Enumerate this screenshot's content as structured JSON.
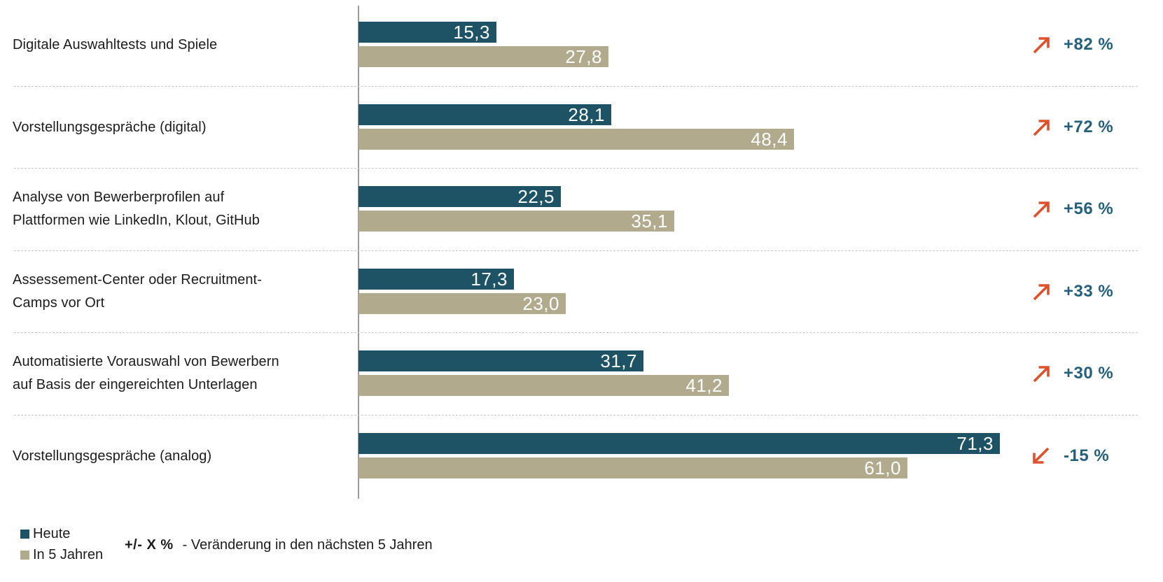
{
  "chart_data": {
    "type": "bar",
    "orientation": "horizontal",
    "value_format": "decimal-comma",
    "xlim": [
      0,
      75
    ],
    "grid": "off",
    "legend_position": "bottom-left",
    "series": [
      {
        "name": "Heute",
        "color": "#1d5365"
      },
      {
        "name": "In 5 Jahren",
        "color": "#b1aa8c"
      }
    ],
    "rows": [
      {
        "label": "Digitale Auswahltests und Spiele",
        "values": [
          15.3,
          27.8
        ],
        "value_labels": [
          "15,3",
          "27,8"
        ],
        "change": "+82 %",
        "direction": "up"
      },
      {
        "label": "Vorstellungsgespräche (digital)",
        "values": [
          28.1,
          48.4
        ],
        "value_labels": [
          "28,1",
          "48,4"
        ],
        "change": "+72 %",
        "direction": "up"
      },
      {
        "label": "Analyse von Bewerberprofilen auf\nPlattformen wie LinkedIn, Klout, GitHub",
        "values": [
          22.5,
          35.1
        ],
        "value_labels": [
          "22,5",
          "35,1"
        ],
        "change": "+56 %",
        "direction": "up"
      },
      {
        "label": "Assessement-Center oder Recruitment-\nCamps vor Ort",
        "values": [
          17.3,
          23.0
        ],
        "value_labels": [
          "17,3",
          "23,0"
        ],
        "change": "+33 %",
        "direction": "up"
      },
      {
        "label": "Automatisierte Vorauswahl von Bewerbern\nauf Basis der eingereichten Unterlagen",
        "values": [
          31.7,
          41.2
        ],
        "value_labels": [
          "31,7",
          "41,2"
        ],
        "change": "+30 %",
        "direction": "up"
      },
      {
        "label": "Vorstellungsgespräche (analog)",
        "values": [
          71.3,
          61.0
        ],
        "value_labels": [
          "71,3",
          "61,0"
        ],
        "change": "-15 %",
        "direction": "down"
      }
    ],
    "note": {
      "symbol": "+/- X %",
      "text": "- Veränderung in den nächsten 5 Jahren"
    },
    "colors": {
      "heute": "#1d5365",
      "in5jahren": "#b1aa8c",
      "arrow": "#e0502a",
      "percent_text": "#23607d"
    }
  }
}
